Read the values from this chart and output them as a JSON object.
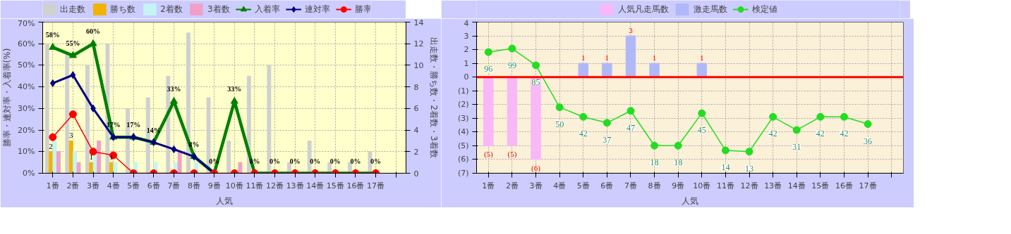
{
  "chart_data": [
    {
      "type": "bar",
      "categories": [
        "1番",
        "2番",
        "3番",
        "4番",
        "5番",
        "6番",
        "7番",
        "8番",
        "9番",
        "10番",
        "11番",
        "12番",
        "13番",
        "14番",
        "15番",
        "16番",
        "17番",
        null
      ],
      "xlabel": "人気",
      "ylabel": "勝率・連対率・入着率(%)",
      "y2label": "出走数・勝ち数・2着数・3着数",
      "ylim": [
        0,
        70
      ],
      "yticks": [
        {
          "value": 0,
          "label": "0%"
        },
        {
          "value": 10,
          "label": "10%"
        },
        {
          "value": 20,
          "label": "20%"
        },
        {
          "value": 30,
          "label": "30%"
        },
        {
          "value": 40,
          "label": "40%"
        },
        {
          "value": 50,
          "label": "50%"
        },
        {
          "value": 60,
          "label": "60%"
        },
        {
          "value": 70,
          "label": "70%"
        }
      ],
      "y2lim": [
        0,
        14
      ],
      "y2ticks": [
        0,
        2,
        4,
        6,
        8,
        10,
        12,
        14
      ],
      "grid": true,
      "legend": "top",
      "series": [
        {
          "name": "出走数",
          "axis": "y2",
          "color": "#d0d0d0",
          "values": [
            12,
            11,
            10,
            12,
            6,
            7,
            9,
            13,
            7,
            3,
            9,
            10,
            1,
            3,
            1,
            1,
            2,
            null
          ]
        },
        {
          "name": "勝ち数",
          "axis": "y2",
          "color": "#f0b400",
          "values": [
            2,
            3,
            1,
            1,
            0,
            0,
            0,
            0,
            0,
            0,
            0,
            0,
            0,
            0,
            0,
            0,
            0,
            null
          ],
          "value_labels": [
            "2",
            "3",
            "1",
            "1",
            null,
            null,
            null,
            null,
            null,
            null,
            null,
            null,
            null,
            null,
            null,
            null,
            null,
            null
          ]
        },
        {
          "name": "2着数",
          "axis": "y2",
          "color": "#c4f4f4",
          "values": [
            3,
            2,
            2,
            1,
            1,
            1,
            1,
            1,
            0,
            0,
            0,
            0,
            0,
            0,
            0,
            0,
            0,
            null
          ]
        },
        {
          "name": "3着数",
          "axis": "y2",
          "color": "#f0a0c8",
          "values": [
            2,
            1,
            3,
            0,
            0,
            0,
            2,
            0,
            0,
            1,
            0,
            0,
            0,
            0,
            0,
            0,
            0,
            null
          ]
        },
        {
          "name": "入着率",
          "type": "line",
          "color": "#008000",
          "marker": "triangle",
          "values": [
            58.3,
            54.5,
            60,
            16.7,
            16.7,
            14.3,
            33.3,
            7.7,
            0,
            33.3,
            0,
            0,
            0,
            0,
            0,
            0,
            0,
            null
          ],
          "value_labels": [
            "58%",
            "55%",
            "60%",
            "17%",
            "17%",
            "14%",
            "33%",
            "8%",
            "0%",
            "33%",
            "0%",
            "0%",
            "0%",
            "0%",
            "0%",
            "0%",
            "0%",
            null
          ]
        },
        {
          "name": "連対率",
          "type": "line",
          "color": "#000080",
          "marker": "diamond",
          "values": [
            41.7,
            45.5,
            30,
            16.7,
            16.7,
            14.3,
            11.1,
            7.7,
            0,
            null,
            null,
            null,
            null,
            null,
            null,
            null,
            null,
            null
          ]
        },
        {
          "name": "勝率",
          "type": "line",
          "color": "#ff0000",
          "marker": "circle",
          "values": [
            16.7,
            27.3,
            10,
            8.3,
            0,
            0,
            0,
            0,
            0,
            0,
            0,
            0,
            0,
            0,
            0,
            0,
            0,
            null
          ]
        }
      ]
    },
    {
      "type": "bar",
      "stacked": true,
      "categories": [
        "1番",
        "2番",
        "3番",
        "4番",
        "5番",
        "6番",
        "7番",
        "8番",
        "9番",
        "10番",
        "11番",
        "12番",
        "13番",
        "14番",
        "15番",
        "16番",
        "17番",
        null
      ],
      "xlabel": "人気",
      "ylim": [
        -7,
        4
      ],
      "yticks": [
        4,
        3,
        2,
        1,
        0,
        {
          "value": -1,
          "label": "(1)"
        },
        {
          "value": -2,
          "label": "(2)"
        },
        {
          "value": -3,
          "label": "(3)"
        },
        {
          "value": -4,
          "label": "(4)"
        },
        {
          "value": -5,
          "label": "(5)"
        },
        {
          "value": -6,
          "label": "(6)"
        },
        {
          "value": -7,
          "label": "(7)"
        }
      ],
      "y2lim": [
        -5,
        121
      ],
      "grid": true,
      "legend": "top",
      "ref_lines": [
        {
          "axis": "y",
          "value": 0,
          "color": "#ff0000"
        }
      ],
      "series": [
        {
          "name": "人気凡走馬数",
          "color": "#f8b8f8",
          "values": [
            -5,
            -5,
            -6,
            0,
            0,
            0,
            0,
            0,
            0,
            0,
            0,
            0,
            0,
            0,
            0,
            0,
            0,
            null
          ],
          "value_labels": [
            "(5)",
            "(5)",
            "(6)",
            null,
            null,
            null,
            null,
            null,
            null,
            null,
            null,
            null,
            null,
            null,
            null,
            null,
            null,
            null
          ]
        },
        {
          "name": "激走馬数",
          "color": "#b0b8f8",
          "values": [
            0,
            0,
            0,
            0,
            1,
            1,
            3,
            1,
            0,
            1,
            0,
            0,
            0,
            0,
            0,
            0,
            0,
            null
          ],
          "value_labels": [
            null,
            null,
            null,
            null,
            "1",
            "1",
            "3",
            "1",
            null,
            "1",
            null,
            null,
            null,
            null,
            null,
            null,
            null,
            null
          ]
        },
        {
          "name": "検定値",
          "type": "line",
          "axis": "y2",
          "color": "#22dd22",
          "marker": "circle",
          "values": [
            96,
            99,
            85,
            50,
            42,
            37,
            47,
            18,
            18,
            45,
            14,
            13,
            42,
            31,
            42,
            42,
            36,
            null
          ],
          "value_labels": [
            "96",
            "99",
            "85",
            "50",
            "42",
            "37",
            "47",
            "18",
            "18",
            "45",
            "14",
            "13",
            "42",
            "31",
            "42",
            "42",
            "36",
            null
          ]
        }
      ]
    }
  ]
}
